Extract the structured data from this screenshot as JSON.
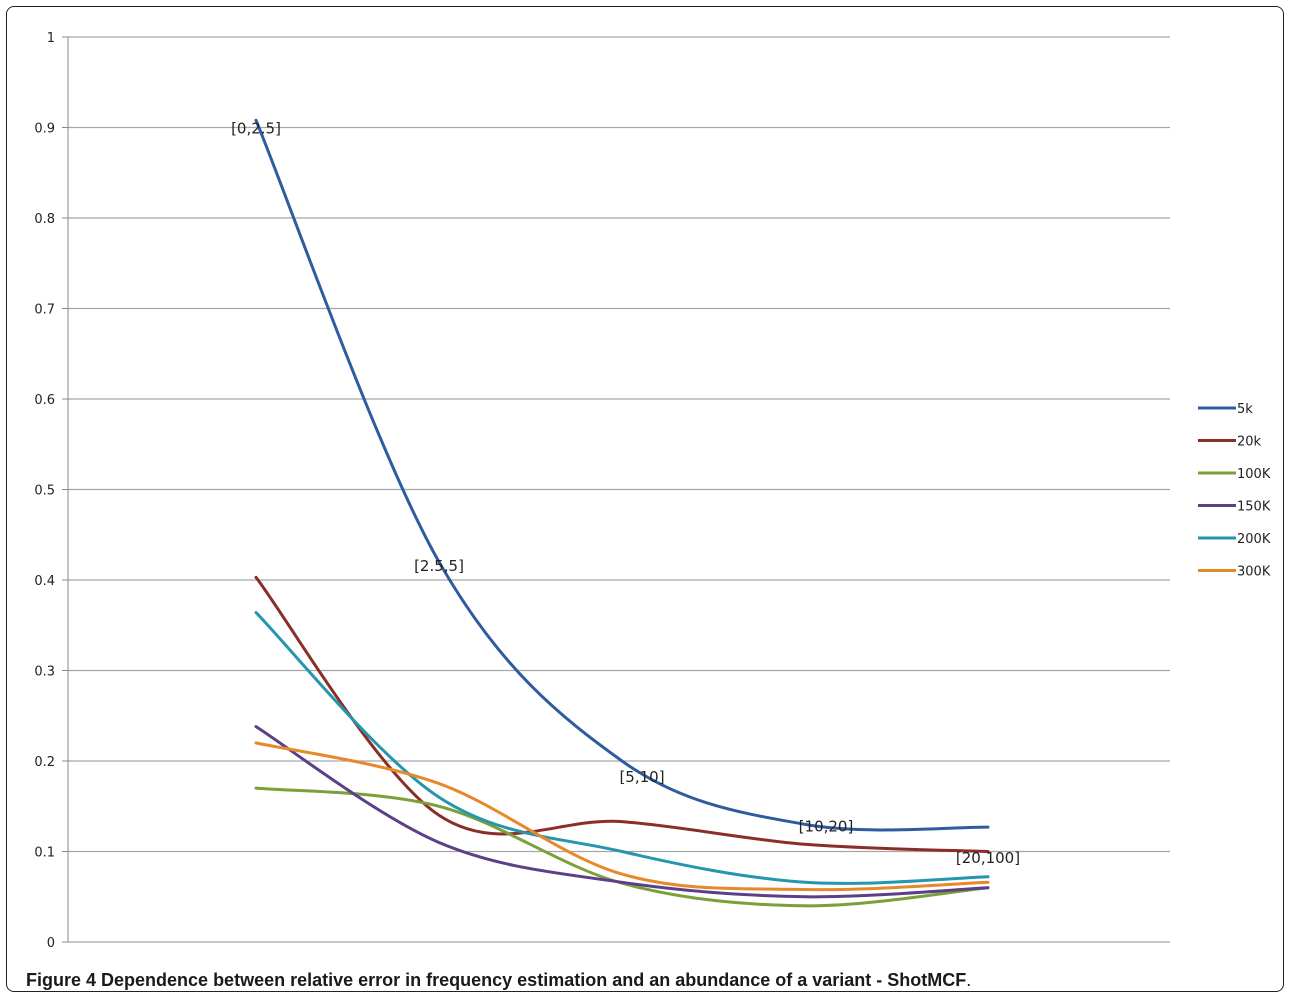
{
  "chart_data": {
    "type": "line",
    "title": "",
    "xlabel": "",
    "ylabel": "",
    "ylim": [
      0,
      1
    ],
    "yticks": [
      "0",
      "0.1",
      "0.2",
      "0.3",
      "0.4",
      "0.5",
      "0.6",
      "0.7",
      "0.8",
      "0.9",
      "1"
    ],
    "grid": true,
    "legend_position": "right",
    "categories": [
      "[0,2.5]",
      "[2.5,5]",
      "[5,10]",
      "[10,20]",
      "[20,100]"
    ],
    "series": [
      {
        "name": "5k",
        "color": "#2e5c9e",
        "values": [
          0.908,
          0.42,
          0.2,
          0.13,
          0.127
        ]
      },
      {
        "name": "20k",
        "color": "#8b2e2a",
        "values": [
          0.403,
          0.14,
          0.133,
          0.108,
          0.1
        ]
      },
      {
        "name": "100K",
        "color": "#7ba03a",
        "values": [
          0.17,
          0.15,
          0.065,
          0.04,
          0.06
        ]
      },
      {
        "name": "150K",
        "color": "#5b3f87",
        "values": [
          0.238,
          0.11,
          0.066,
          0.05,
          0.06
        ]
      },
      {
        "name": "200K",
        "color": "#2596ad",
        "values": [
          0.364,
          0.16,
          0.1,
          0.066,
          0.072
        ]
      },
      {
        "name": "300K",
        "color": "#e5892b",
        "values": [
          0.22,
          0.175,
          0.075,
          0.058,
          0.066
        ]
      }
    ],
    "category_labels_on_series": "5k"
  },
  "caption": {
    "label": "Figure 4",
    "title": "Dependence between relative error in frequency estimation and an abundance of a variant - ShotMCF",
    "end": "."
  }
}
